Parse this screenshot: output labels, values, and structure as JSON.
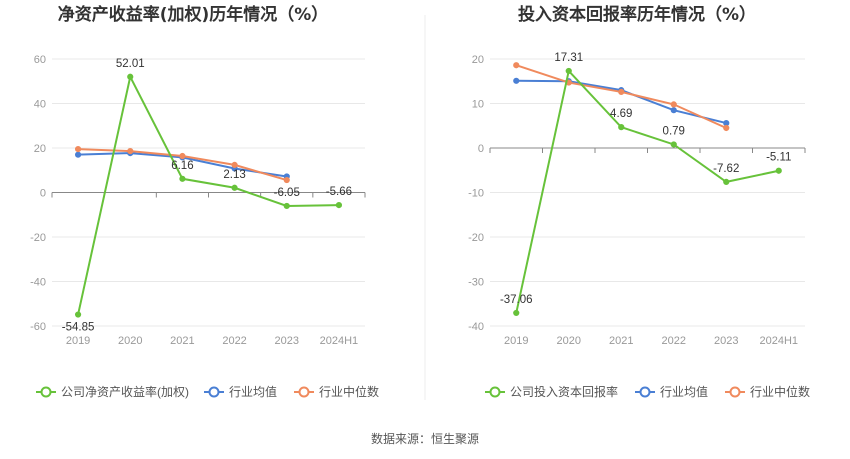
{
  "source": "数据来源：恒生聚源",
  "colors": {
    "company": "#67c23a",
    "industry_avg": "#4a7fd4",
    "industry_median": "#f08a5d",
    "grid": "#e8e8e8",
    "axis": "#888888"
  },
  "chart_data": [
    {
      "type": "line",
      "title": "净资产收益率(加权)历年情况（%）",
      "categories": [
        "2019",
        "2020",
        "2021",
        "2022",
        "2023",
        "2024H1"
      ],
      "ylim": [
        -60,
        60
      ],
      "yticks": [
        60,
        40,
        20,
        0,
        -20,
        -40,
        -60
      ],
      "grid": true,
      "legend_position": "bottom",
      "series": [
        {
          "name": "公司净资产收益率(加权)",
          "color": "#67c23a",
          "values": [
            -54.85,
            52.01,
            6.16,
            2.13,
            -6.05,
            -5.66
          ],
          "labels": [
            "-54.85",
            "52.01",
            "6.16",
            "2.13",
            "-6.05",
            "-5.66"
          ]
        },
        {
          "name": "行业均值",
          "color": "#4a7fd4",
          "values": [
            17,
            17.7,
            15.8,
            10.8,
            7.2,
            null
          ]
        },
        {
          "name": "行业中位数",
          "color": "#f08a5d",
          "values": [
            19.5,
            18.6,
            16.4,
            12.4,
            5.6,
            null
          ]
        }
      ]
    },
    {
      "type": "line",
      "title": "投入资本回报率历年情况（%）",
      "categories": [
        "2019",
        "2020",
        "2021",
        "2022",
        "2023",
        "2024H1"
      ],
      "ylim": [
        -40,
        20
      ],
      "yticks": [
        20,
        10,
        0,
        -10,
        -20,
        -30,
        -40
      ],
      "grid": true,
      "legend_position": "bottom",
      "series": [
        {
          "name": "公司投入资本回报率",
          "color": "#67c23a",
          "values": [
            -37.06,
            17.31,
            4.69,
            0.79,
            -7.62,
            -5.11
          ],
          "labels": [
            "-37.06",
            "17.31",
            "4.69",
            "0.79",
            "-7.62",
            "-5.11"
          ]
        },
        {
          "name": "行业均值",
          "color": "#4a7fd4",
          "values": [
            15.1,
            15,
            13,
            8.5,
            5.6,
            null
          ]
        },
        {
          "name": "行业中位数",
          "color": "#f08a5d",
          "values": [
            18.6,
            14.7,
            12.6,
            9.8,
            4.5,
            null
          ]
        }
      ]
    }
  ]
}
